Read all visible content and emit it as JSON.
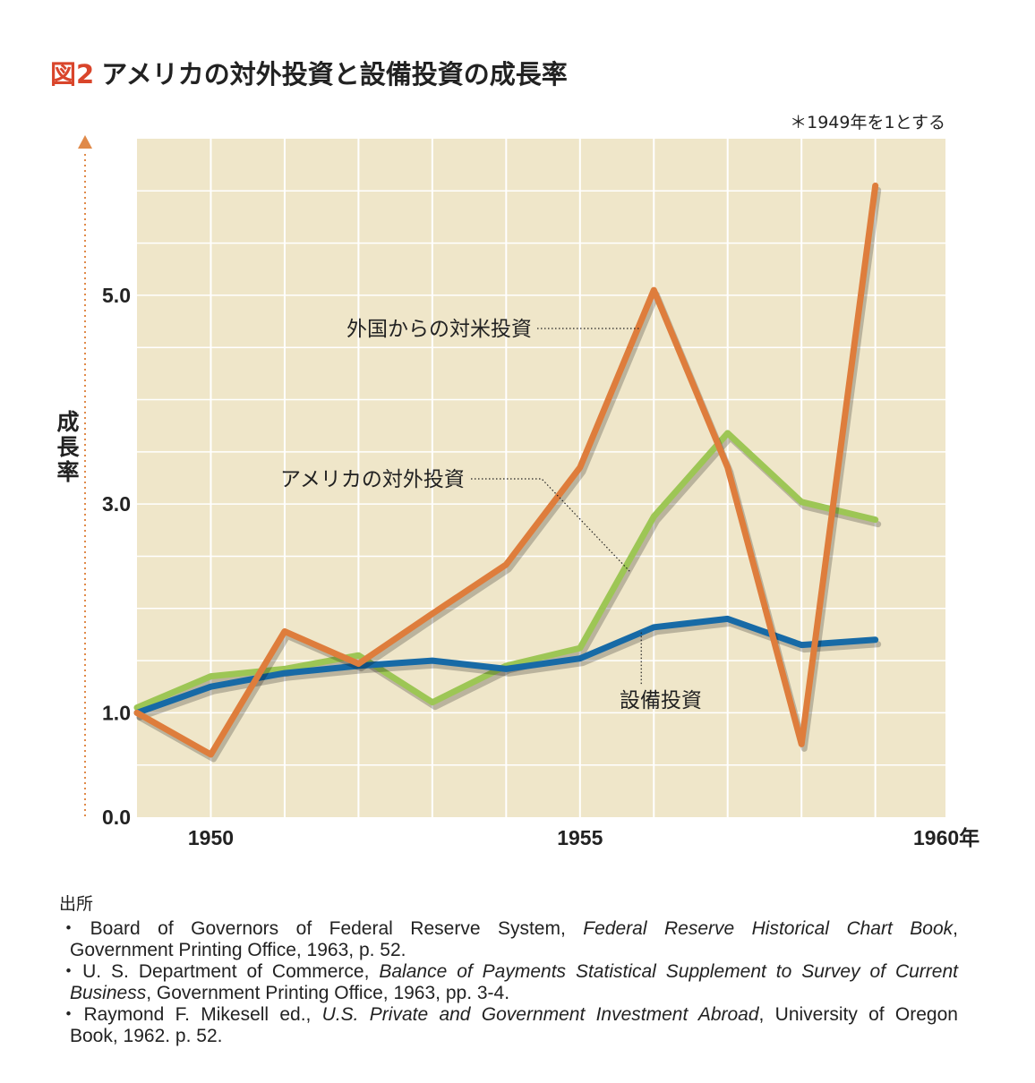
{
  "title": {
    "figure_label": "図2",
    "text": "アメリカの対外投資と設備投資の成長率"
  },
  "note": "＊1949年を1とする",
  "chart_data": {
    "type": "line",
    "x": [
      1949,
      1950,
      1951,
      1952,
      1953,
      1954,
      1955,
      1956,
      1957,
      1958,
      1959
    ],
    "xlim": [
      1949,
      1959.95
    ],
    "x_tick_labels": [
      {
        "x": 1950,
        "label": "1950"
      },
      {
        "x": 1955,
        "label": "1955"
      },
      {
        "x": 1960,
        "label": "1960年"
      }
    ],
    "ylabel": "成長率",
    "ylim": [
      0,
      6.5
    ],
    "y_tick_labels": [
      {
        "y": 0,
        "label": "0.0"
      },
      {
        "y": 1,
        "label": "1.0"
      },
      {
        "y": 3,
        "label": "3.0"
      },
      {
        "y": 5,
        "label": "5.0"
      }
    ],
    "grid": true,
    "background_color": "#efe6c9",
    "series": [
      {
        "name": "アメリカの対外投資",
        "color": "#9dc655",
        "values": [
          1.05,
          1.35,
          1.42,
          1.55,
          1.1,
          1.45,
          1.62,
          2.88,
          3.68,
          3.02,
          2.85
        ]
      },
      {
        "name": "設備投資",
        "color": "#176aa6",
        "values": [
          1.0,
          1.25,
          1.38,
          1.45,
          1.5,
          1.42,
          1.52,
          1.82,
          1.9,
          1.65,
          1.7
        ]
      },
      {
        "name": "外国からの対米投資",
        "color": "#de7d3c",
        "values": [
          1.0,
          0.6,
          1.78,
          1.47,
          1.95,
          2.42,
          3.35,
          5.05,
          3.35,
          0.7,
          6.05
        ]
      }
    ],
    "annotations": [
      {
        "text": "外国からの対米投資",
        "series": "外国からの対米投資"
      },
      {
        "text": "アメリカの対外投資",
        "series": "アメリカの対外投資"
      },
      {
        "text": "設備投資",
        "series": "設備投資"
      }
    ]
  },
  "sources": {
    "heading": "出所",
    "items": [
      {
        "line1_prefix": "・Board of Governors of Federal Reserve System, ",
        "line1_italic": "Federal Reserve Historical Chart Book",
        "line1_suffix": ",",
        "line2_italic": "",
        "line2": "Government Printing Office, 1963, p. 52."
      },
      {
        "line1_prefix": "・U. S. Department of Commerce, ",
        "line1_italic": "Balance of Payments Statistical Supplement to Survey of Current",
        "line1_suffix": "",
        "line2_italic": "Business",
        "line2": ", Government Printing Office, 1963, pp. 3-4."
      },
      {
        "line1_prefix": "・Raymond F. Mikesell ed., ",
        "line1_italic": "U.S. Private and Government Investment Abroad",
        "line1_suffix": ", University of Oregon",
        "line2_italic": "",
        "line2": "Book, 1962. p. 52."
      }
    ]
  }
}
